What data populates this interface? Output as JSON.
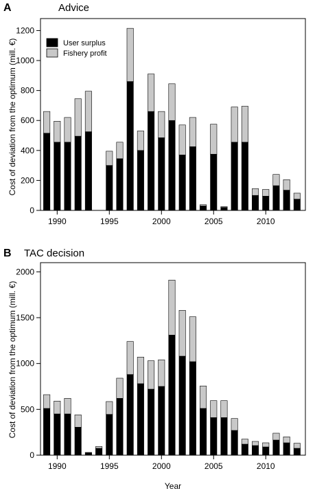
{
  "colors": {
    "user_surplus": "#000000",
    "fishery_profit": "#c8c8c8",
    "edge": "#000000"
  },
  "chart_data": [
    {
      "type": "bar",
      "stacked": true,
      "panel_letter": "A",
      "title": "Advice",
      "ylabel": "Cost of deviation from the optimum (mill. €)",
      "xlabel": "",
      "ylim": [
        0,
        1280
      ],
      "yticks": [
        0,
        200,
        400,
        600,
        800,
        1000,
        1200
      ],
      "xlim": [
        1988.4,
        2013.8
      ],
      "xticks": [
        1990,
        1995,
        2000,
        2005,
        2010
      ],
      "legend": {
        "placement": "top-left",
        "entries": [
          "User surplus",
          "Fishery profit"
        ]
      },
      "x": [
        1989,
        1990,
        1991,
        1992,
        1993,
        1994,
        1995,
        1996,
        1997,
        1998,
        1999,
        2000,
        2001,
        2002,
        2003,
        2004,
        2005,
        2006,
        2007,
        2008,
        2009,
        2010,
        2011,
        2012,
        2013
      ],
      "series": [
        {
          "name": "User surplus",
          "values": [
            515,
            455,
            455,
            495,
            525,
            0,
            300,
            345,
            860,
            400,
            660,
            485,
            600,
            370,
            425,
            30,
            375,
            20,
            455,
            455,
            100,
            95,
            165,
            135,
            75
          ]
        },
        {
          "name": "Fishery profit",
          "values": [
            145,
            140,
            165,
            250,
            270,
            0,
            95,
            110,
            355,
            130,
            250,
            175,
            245,
            200,
            195,
            8,
            200,
            5,
            235,
            240,
            45,
            45,
            75,
            70,
            40
          ]
        }
      ]
    },
    {
      "type": "bar",
      "stacked": true,
      "panel_letter": "B",
      "title": "TAC decision",
      "ylabel": "Cost of deviation from the optimum (mill. €)",
      "xlabel": "Year",
      "ylim": [
        0,
        2100
      ],
      "yticks": [
        0,
        500,
        1000,
        1500,
        2000
      ],
      "xlim": [
        1988.4,
        2013.8
      ],
      "xticks": [
        1990,
        1995,
        2000,
        2005,
        2010
      ],
      "x": [
        1989,
        1990,
        1991,
        1992,
        1993,
        1994,
        1995,
        1996,
        1997,
        1998,
        1999,
        2000,
        2001,
        2002,
        2003,
        2004,
        2005,
        2006,
        2007,
        2008,
        2009,
        2010,
        2011,
        2012,
        2013
      ],
      "series": [
        {
          "name": "User surplus",
          "values": [
            510,
            450,
            450,
            305,
            25,
            75,
            445,
            620,
            880,
            780,
            720,
            750,
            1310,
            1080,
            1020,
            510,
            410,
            410,
            270,
            120,
            105,
            90,
            165,
            135,
            75
          ]
        },
        {
          "name": "Fishery profit",
          "values": [
            150,
            140,
            170,
            135,
            5,
            20,
            140,
            220,
            360,
            290,
            310,
            290,
            600,
            500,
            490,
            245,
            185,
            185,
            130,
            55,
            45,
            45,
            75,
            65,
            55
          ]
        }
      ]
    }
  ]
}
